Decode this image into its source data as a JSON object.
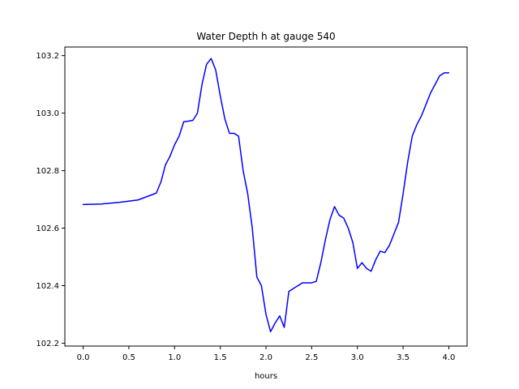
{
  "chart_data": {
    "type": "line",
    "title": "Water Depth h at gauge 540",
    "xlabel": "hours",
    "ylabel": "",
    "xlim": [
      -0.2,
      4.2
    ],
    "ylim": [
      102.19,
      103.23
    ],
    "xticks": [
      0.0,
      0.5,
      1.0,
      1.5,
      2.0,
      2.5,
      3.0,
      3.5,
      4.0
    ],
    "xtick_labels": [
      "0.0",
      "0.5",
      "1.0",
      "1.5",
      "2.0",
      "2.5",
      "3.0",
      "3.5",
      "4.0"
    ],
    "yticks": [
      102.2,
      102.4,
      102.6,
      102.8,
      103.0,
      103.2
    ],
    "ytick_labels": [
      "102.2",
      "102.4",
      "102.6",
      "102.8",
      "103.0",
      "103.2"
    ],
    "grid": false,
    "series": [
      {
        "color": "#0000ff",
        "x": [
          0.0,
          0.2,
          0.4,
          0.6,
          0.7,
          0.8,
          0.85,
          0.9,
          0.95,
          1.0,
          1.05,
          1.1,
          1.15,
          1.2,
          1.25,
          1.3,
          1.35,
          1.4,
          1.45,
          1.5,
          1.55,
          1.6,
          1.65,
          1.7,
          1.75,
          1.8,
          1.85,
          1.9,
          1.95,
          2.0,
          2.05,
          2.1,
          2.15,
          2.2,
          2.25,
          2.3,
          2.35,
          2.4,
          2.45,
          2.5,
          2.55,
          2.6,
          2.65,
          2.7,
          2.75,
          2.8,
          2.85,
          2.9,
          2.95,
          3.0,
          3.05,
          3.1,
          3.15,
          3.2,
          3.25,
          3.3,
          3.35,
          3.4,
          3.45,
          3.5,
          3.55,
          3.6,
          3.65,
          3.7,
          3.75,
          3.8,
          3.85,
          3.9,
          3.95,
          4.0
        ],
        "y": [
          102.682,
          102.684,
          102.69,
          102.698,
          102.71,
          102.722,
          102.76,
          102.82,
          102.85,
          102.89,
          102.92,
          102.97,
          102.972,
          102.975,
          103.0,
          103.1,
          103.17,
          103.19,
          103.15,
          103.06,
          102.98,
          102.93,
          102.93,
          102.92,
          102.8,
          102.72,
          102.6,
          102.43,
          102.4,
          102.3,
          102.24,
          102.27,
          102.295,
          102.255,
          102.38,
          102.39,
          102.4,
          102.41,
          102.41,
          102.41,
          102.415,
          102.48,
          102.56,
          102.63,
          102.675,
          102.645,
          102.635,
          102.6,
          102.55,
          102.46,
          102.48,
          102.46,
          102.45,
          102.49,
          102.52,
          102.515,
          102.54,
          102.58,
          102.62,
          102.72,
          102.83,
          102.92,
          102.96,
          102.99,
          103.03,
          103.07,
          103.1,
          103.13,
          103.14,
          103.14
        ]
      }
    ]
  }
}
